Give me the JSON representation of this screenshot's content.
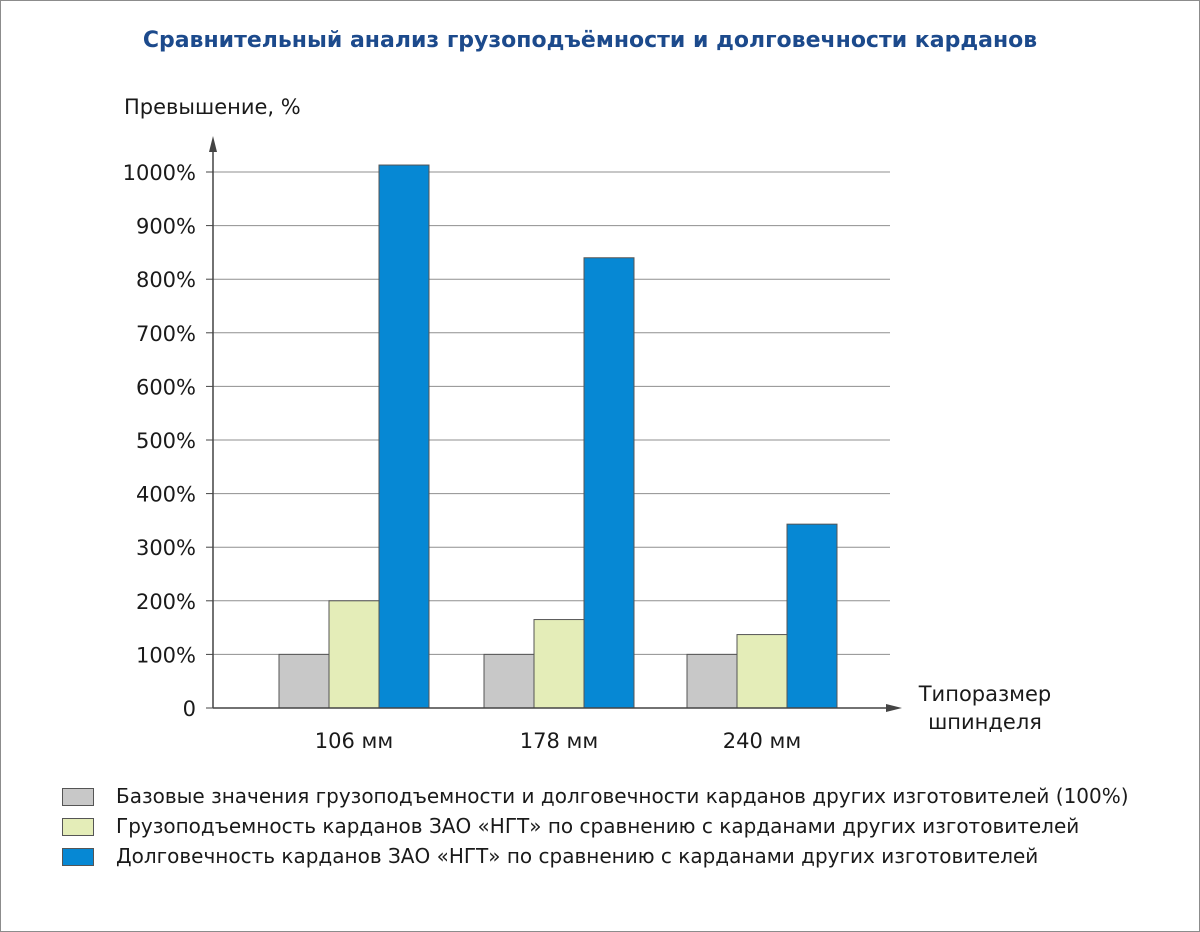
{
  "chart_data": {
    "type": "bar",
    "title": "Сравнительный анализ грузоподъёмности и долговечности карданов",
    "ylabel": "Превышение, %",
    "xlabel_lines": [
      "Типоразмер",
      "шпинделя"
    ],
    "categories": [
      "106 мм",
      "178 мм",
      "240 мм"
    ],
    "ylim": [
      0,
      1000
    ],
    "yticks": [
      0,
      100,
      200,
      300,
      400,
      500,
      600,
      700,
      800,
      900,
      1000
    ],
    "ytick_labels": [
      "0",
      "100%",
      "200%",
      "300%",
      "400%",
      "500%",
      "600%",
      "700%",
      "800%",
      "900%",
      "1000%"
    ],
    "grid": true,
    "legend_position": "bottom",
    "series": [
      {
        "name": "Базовые значения грузоподъемности и долговечности карданов других изготовителей (100%)",
        "values": [
          100,
          100,
          100
        ],
        "color": "#c8c8c8"
      },
      {
        "name": "Грузоподъемность карданов ЗАО «НГТ» по сравнению с карданами других изготовителей",
        "values": [
          200,
          165,
          137
        ],
        "color": "#e4edb8"
      },
      {
        "name": "Долговечность карданов ЗАО «НГТ» по сравнению с карданами других изготовителей",
        "values": [
          1013,
          840,
          343
        ],
        "color": "#0688d4"
      }
    ]
  }
}
